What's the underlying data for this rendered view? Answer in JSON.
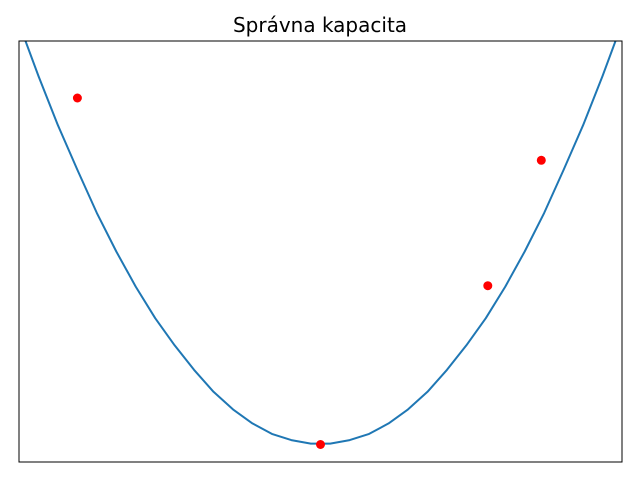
{
  "chart_data": {
    "type": "line",
    "title": "Správna kapacita",
    "xlabel": "",
    "ylabel": "",
    "xlim": [
      -3.1,
      3.1
    ],
    "ylim": [
      -0.2,
      4.6
    ],
    "grid": false,
    "axis_ticks": false,
    "series": [
      {
        "kind": "curve",
        "color": "#1f77b4",
        "function": "parabola",
        "x": [
          -3.1,
          -2.9,
          -2.7,
          -2.5,
          -2.3,
          -2.1,
          -1.9,
          -1.7,
          -1.5,
          -1.3,
          -1.1,
          -0.9,
          -0.7,
          -0.5,
          -0.3,
          -0.1,
          0.1,
          0.3,
          0.5,
          0.7,
          0.9,
          1.1,
          1.3,
          1.5,
          1.7,
          1.9,
          2.1,
          2.3,
          2.5,
          2.7,
          2.9,
          3.1
        ],
        "y": [
          4.8,
          4.2,
          3.64,
          3.13,
          2.64,
          2.2,
          1.8,
          1.44,
          1.13,
          0.85,
          0.6,
          0.4,
          0.24,
          0.12,
          0.05,
          0.01,
          0.01,
          0.05,
          0.12,
          0.24,
          0.4,
          0.6,
          0.85,
          1.13,
          1.44,
          1.8,
          2.2,
          2.64,
          3.13,
          3.64,
          4.2,
          4.8
        ]
      },
      {
        "kind": "points",
        "color": "#ff0000",
        "x": [
          -2.5,
          0.0,
          1.72,
          2.27
        ],
        "y": [
          3.95,
          0.0,
          1.81,
          3.24
        ]
      }
    ]
  }
}
